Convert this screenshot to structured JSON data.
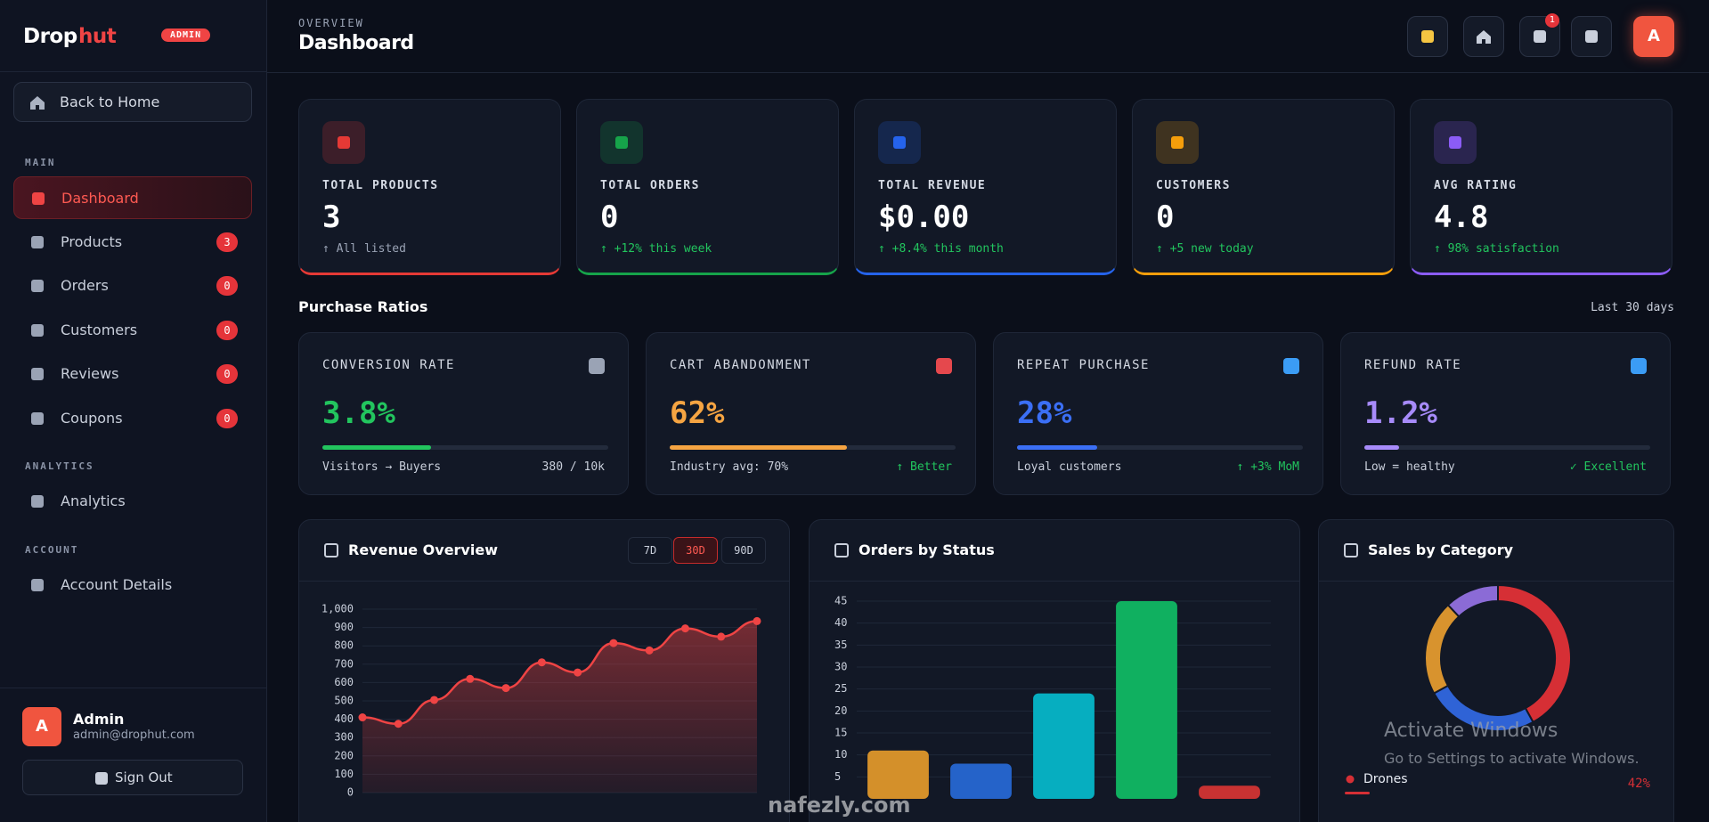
{
  "brand": {
    "name_part1": "Drop",
    "name_part2": "hut",
    "badge": "ADMIN"
  },
  "header": {
    "eyebrow": "OVERVIEW",
    "title": "Dashboard",
    "notification_count": 1,
    "avatar": "A"
  },
  "sidebar": {
    "back": "Back to Home",
    "sections": [
      {
        "title": "MAIN",
        "items": [
          {
            "label": "Dashboard",
            "active": true
          },
          {
            "label": "Products",
            "badge": 3
          },
          {
            "label": "Orders",
            "badge": 0
          },
          {
            "label": "Customers",
            "badge": 0
          },
          {
            "label": "Reviews",
            "badge": 0
          },
          {
            "label": "Coupons",
            "badge": 0
          }
        ]
      },
      {
        "title": "ANALYTICS",
        "items": [
          {
            "label": "Analytics"
          }
        ]
      },
      {
        "title": "ACCOUNT",
        "items": [
          {
            "label": "Account Details"
          }
        ]
      }
    ],
    "user": {
      "initial": "A",
      "name": "Admin",
      "email": "admin@drophut.com",
      "sign_out": "Sign Out"
    }
  },
  "stats": [
    {
      "label": "TOTAL PRODUCTS",
      "value": 3,
      "note": "↑ All listed",
      "color": "#e53935",
      "note_color": "#9aa3b5"
    },
    {
      "label": "TOTAL ORDERS",
      "value": 0,
      "note": "↑ +12% this week",
      "color": "#16a34a",
      "note_color": "#22c55e"
    },
    {
      "label": "TOTAL REVENUE",
      "value": "$0.00",
      "note": "↑ +8.4% this month",
      "color": "#2563eb",
      "note_color": "#22c55e"
    },
    {
      "label": "CUSTOMERS",
      "value": 0,
      "note": "↑ +5 new today",
      "color": "#f59e0b",
      "note_color": "#22c55e"
    },
    {
      "label": "AVG RATING",
      "value": 4.8,
      "note": "↑ 98% satisfaction",
      "color": "#8b5cf6",
      "note_color": "#22c55e"
    }
  ],
  "ratios_section": {
    "title": "Purchase Ratios",
    "range": "Last 30 days"
  },
  "ratios": [
    {
      "label": "CONVERSION RATE",
      "value": "3.8%",
      "progress": 38,
      "note": "Visitors → Buyers",
      "detail": "380 / 10k",
      "color": "#22c55e",
      "detail_color": "#c9cfdb",
      "icon_color": "#9aa3b5"
    },
    {
      "label": "CART ABANDONMENT",
      "value": "62%",
      "progress": 62,
      "note": "Industry avg: 70%",
      "detail": "↑ Better",
      "color": "#f5a442",
      "detail_color": "#22c55e",
      "icon_color": "#e5484d"
    },
    {
      "label": "REPEAT PURCHASE",
      "value": "28%",
      "progress": 28,
      "note": "Loyal customers",
      "detail": "↑ +3% MoM",
      "color": "#3b6ff5",
      "detail_color": "#22c55e",
      "icon_color": "#3b9cf5"
    },
    {
      "label": "REFUND RATE",
      "value": "1.2%",
      "progress": 12,
      "note": "Low = healthy",
      "detail": "✓ Excellent",
      "color": "#a78bfa",
      "detail_color": "#22c55e",
      "icon_color": "#3b9cf5"
    }
  ],
  "chart_data": [
    {
      "type": "line",
      "title": "Revenue Overview",
      "buttons": [
        "7D",
        "30D",
        "90D"
      ],
      "active_button": 1,
      "categories": [
        null,
        null,
        null,
        null,
        null,
        null,
        null,
        null,
        null,
        null,
        null,
        null
      ],
      "values": [
        410,
        375,
        505,
        620,
        570,
        710,
        655,
        815,
        775,
        895,
        850,
        935
      ],
      "color": "#ef4444",
      "ylim": [
        0,
        1000
      ],
      "yticks": [
        0,
        100,
        200,
        300,
        400,
        500,
        600,
        700,
        800,
        900,
        {
          "value": 1000,
          "label": "1,000"
        }
      ],
      "grid": true
    },
    {
      "type": "bar",
      "title": "Orders by Status",
      "categories": [
        null,
        null,
        null,
        null,
        null
      ],
      "values": [
        11,
        8,
        24,
        45,
        3
      ],
      "colors": [
        "#d4902a",
        "#2563c9",
        "#06aec0",
        "#10b060",
        "#c83232"
      ],
      "ylim": [
        0,
        45
      ],
      "yticks": [
        5,
        10,
        15,
        20,
        25,
        30,
        35,
        40,
        45
      ],
      "grid": true
    },
    {
      "type": "pie",
      "title": "Sales by Category",
      "donut": true,
      "categories": [
        "Drones",
        null,
        null,
        null
      ],
      "values": [
        42,
        25,
        21,
        12
      ],
      "value_labels": [
        "42%",
        null,
        null,
        null
      ],
      "colors": [
        "#d62f35",
        "#2f63d6",
        "#d8932e",
        "#8b6bd6"
      ]
    }
  ],
  "watermark": {
    "title": "Activate Windows",
    "text": "Go to Settings to activate Windows.",
    "site": "nafezly.com"
  }
}
